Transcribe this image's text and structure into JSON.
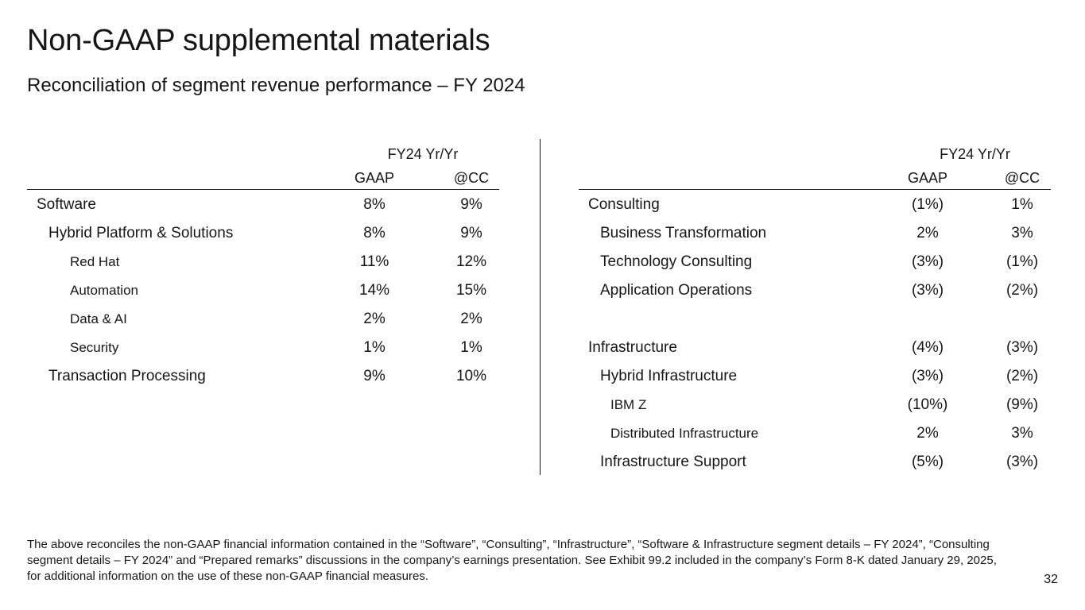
{
  "title": "Non-GAAP supplemental materials",
  "subtitle": "Reconciliation of segment revenue performance – FY 2024",
  "left_table": {
    "group_header": "FY24 Yr/Yr",
    "col1": "GAAP",
    "col2": "@CC",
    "rows": [
      {
        "label": "Software",
        "gaap": "8%",
        "cc": "9%"
      },
      {
        "label": "Hybrid Platform & Solutions",
        "gaap": "8%",
        "cc": "9%"
      },
      {
        "label": "Red Hat",
        "gaap": "11%",
        "cc": "12%"
      },
      {
        "label": "Automation",
        "gaap": "14%",
        "cc": "15%"
      },
      {
        "label": "Data & AI",
        "gaap": "2%",
        "cc": "2%"
      },
      {
        "label": "Security",
        "gaap": "1%",
        "cc": "1%"
      },
      {
        "label": "Transaction Processing",
        "gaap": "9%",
        "cc": "10%"
      }
    ]
  },
  "right_table": {
    "group_header": "FY24 Yr/Yr",
    "col1": "GAAP",
    "col2": "@CC",
    "rows": [
      {
        "label": "Consulting",
        "gaap": "(1%)",
        "cc": "1%"
      },
      {
        "label": "Business Transformation",
        "gaap": "2%",
        "cc": "3%"
      },
      {
        "label": "Technology Consulting",
        "gaap": "(3%)",
        "cc": "(1%)"
      },
      {
        "label": "Application Operations",
        "gaap": "(3%)",
        "cc": "(2%)"
      },
      {
        "label": "Infrastructure",
        "gaap": "(4%)",
        "cc": "(3%)"
      },
      {
        "label": "Hybrid Infrastructure",
        "gaap": "(3%)",
        "cc": "(2%)"
      },
      {
        "label": "IBM Z",
        "gaap": "(10%)",
        "cc": "(9%)"
      },
      {
        "label": "Distributed Infrastructure",
        "gaap": "2%",
        "cc": "3%"
      },
      {
        "label": "Infrastructure Support",
        "gaap": "(5%)",
        "cc": "(3%)"
      }
    ]
  },
  "footnote": "The above reconciles the non-GAAP financial information contained in the “Software”, “Consulting”, “Infrastructure”, “Software & Infrastructure segment details – FY 2024”, “Consulting segment details – FY 2024” and “Prepared remarks” discussions in the company’s earnings presentation. See Exhibit 99.2 included in the company’s Form 8-K dated January 29, 2025, for additional information on the use of these non-GAAP financial measures.",
  "page_number": "32"
}
